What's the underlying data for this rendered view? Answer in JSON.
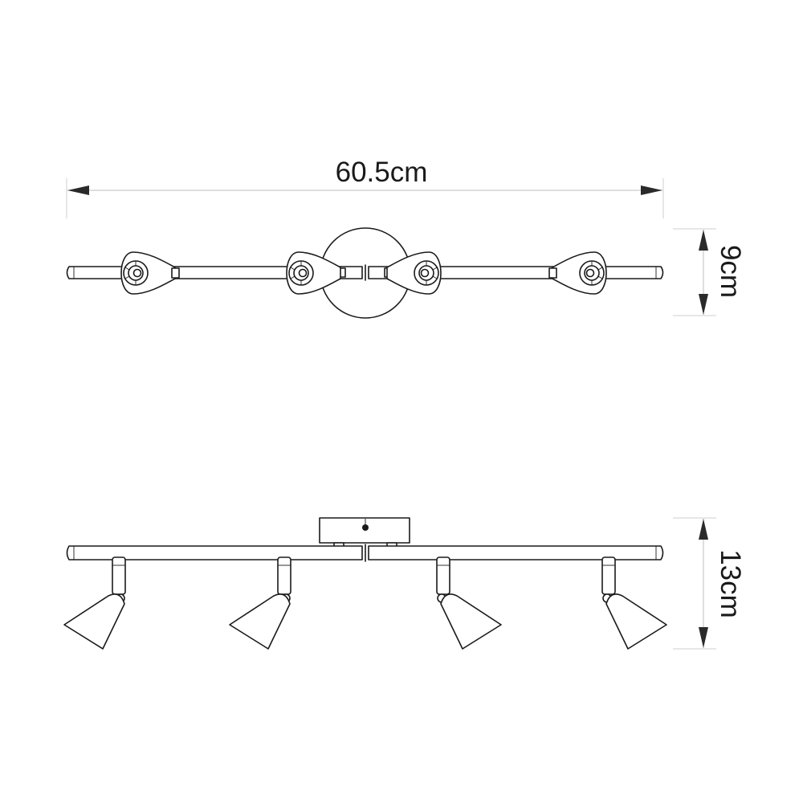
{
  "dimensions": {
    "width": "60.5cm",
    "top_height": "9cm",
    "side_height": "13cm"
  },
  "views": {
    "top": {
      "spotlight_count": 4
    },
    "side": {
      "spotlight_count": 4
    }
  },
  "colors": {
    "line": "#1a1a1a",
    "dimension_line": "#bdbdbd",
    "background": "#ffffff"
  }
}
